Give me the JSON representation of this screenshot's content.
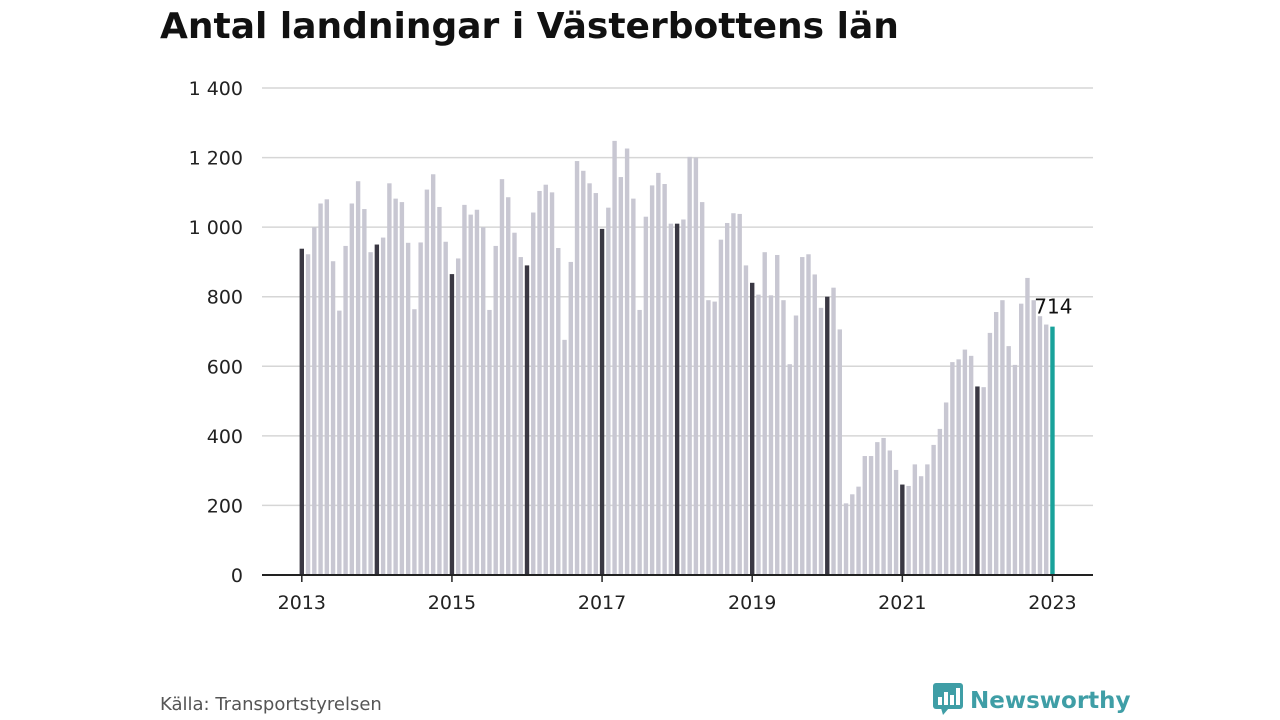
{
  "chart_data": {
    "type": "bar",
    "title": "Antal landningar i Västerbottens län",
    "xlabel": "",
    "ylabel": "",
    "ylim": [
      0,
      1400
    ],
    "y_ticks": [
      0,
      200,
      400,
      600,
      800,
      1000,
      1200,
      1400
    ],
    "y_tick_labels": [
      "0",
      "200",
      "400",
      "600",
      "800",
      "1 000",
      "1 200",
      "1 400"
    ],
    "x_tick_labels": [
      "2013",
      "2015",
      "2017",
      "2019",
      "2021",
      "2023"
    ],
    "grid": true,
    "start": "2013-01",
    "frequency": "monthly",
    "values": [
      938,
      922,
      1000,
      1068,
      1080,
      902,
      760,
      946,
      1068,
      1132,
      1052,
      928,
      950,
      970,
      1126,
      1082,
      1072,
      955,
      764,
      956,
      1108,
      1152,
      1058,
      958,
      865,
      910,
      1064,
      1036,
      1050,
      1000,
      762,
      946,
      1138,
      1086,
      984,
      914,
      890,
      1042,
      1104,
      1122,
      1100,
      940,
      676,
      900,
      1190,
      1162,
      1126,
      1098,
      995,
      1056,
      1248,
      1144,
      1226,
      1082,
      762,
      1030,
      1120,
      1156,
      1124,
      1010,
      1010,
      1022,
      1202,
      1200,
      1072,
      790,
      786,
      964,
      1012,
      1040,
      1038,
      890,
      840,
      806,
      928,
      804,
      920,
      790,
      606,
      746,
      914,
      922,
      864,
      768,
      800,
      826,
      706,
      206,
      232,
      254,
      342,
      342,
      382,
      394,
      358,
      302,
      260,
      256,
      318,
      284,
      318,
      374,
      420,
      496,
      612,
      620,
      648,
      630,
      542,
      540,
      696,
      756,
      790,
      658,
      604,
      780,
      854,
      790,
      744,
      720,
      714
    ],
    "highlight_label": "714",
    "colors": {
      "bar": "#c8c7d2",
      "january": "#3a3843",
      "latest": "#19a29b",
      "grid": "#d6d6d6",
      "axis": "#222222",
      "tick_text": "#222222"
    }
  },
  "footer": {
    "source": "Källa: Transportstyrelsen",
    "brand": "Newsworthy",
    "brand_icon": "bar-chart-speech-bubble-icon",
    "brand_color": "#3f9ea6"
  }
}
